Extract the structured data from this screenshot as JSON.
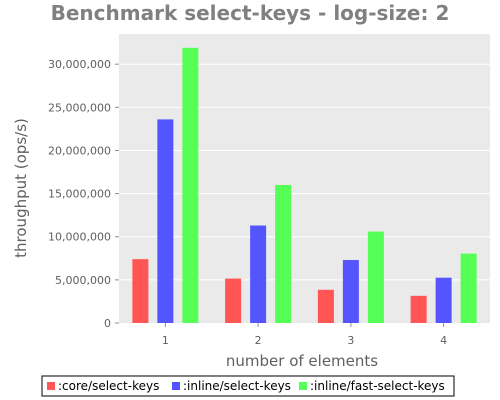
{
  "chart_data": {
    "type": "bar",
    "title": "Benchmark select-keys - log-size: 2",
    "xlabel": "number of elements",
    "ylabel": "throughput (ops/s)",
    "categories": [
      "1",
      "2",
      "3",
      "4"
    ],
    "ylim": [
      0,
      33500000
    ],
    "yticks": [
      0,
      5000000,
      10000000,
      15000000,
      20000000,
      25000000,
      30000000
    ],
    "ytick_labels": [
      "0",
      "5,000,000",
      "10,000,000",
      "15,000,000",
      "20,000,000",
      "25,000,000",
      "30,000,000"
    ],
    "grid": true,
    "legend_position": "bottom",
    "background_color": "#EAEAEA",
    "series": [
      {
        "name": ":core/select-keys",
        "color": "#FF5555",
        "values": [
          7400000,
          5150000,
          3850000,
          3150000
        ]
      },
      {
        "name": ":inline/select-keys",
        "color": "#5555FF",
        "values": [
          23600000,
          11300000,
          7300000,
          5250000
        ]
      },
      {
        "name": ":inline/fast-select-keys",
        "color": "#55FF55",
        "values": [
          31900000,
          16000000,
          10600000,
          8050000
        ]
      }
    ]
  }
}
